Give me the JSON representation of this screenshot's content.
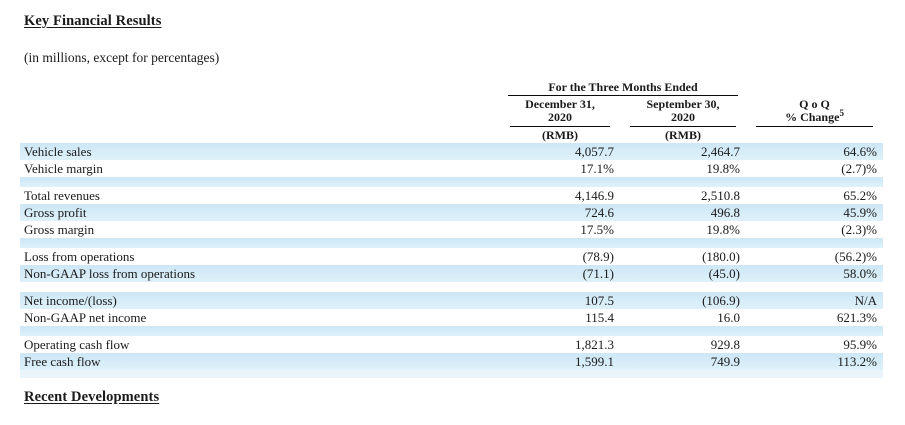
{
  "page": {
    "title": "Key Financial Results",
    "subtitle": "(in millions, except for percentages)",
    "footer_heading": "Recent Developments"
  },
  "colors": {
    "row_shade_top": "#cde7f6",
    "row_shade_bottom": "#def1fa",
    "row_pale": "#eaf5fb",
    "text": "#1a1a1a",
    "rule": "#0a0a0a"
  },
  "table": {
    "col_group_header": "For the Three Months Ended",
    "columns": [
      {
        "line1": "December 31,",
        "line2": "2020",
        "unit": "(RMB)"
      },
      {
        "line1": "September 30,",
        "line2": "2020",
        "unit": "(RMB)"
      },
      {
        "line1": "Q o Q",
        "line2": "% Change",
        "sup": "5"
      }
    ],
    "rows": [
      {
        "label": "Vehicle sales",
        "dec": "4,057.7",
        "sep": "2,464.7",
        "qoq": "64.6%",
        "shaded": true
      },
      {
        "label": "Vehicle margin",
        "dec": "17.1%",
        "sep": "19.8%",
        "qoq": "(2.7)%",
        "shaded": false
      },
      {
        "type": "spacer",
        "shade": "blue"
      },
      {
        "label": "Total revenues",
        "dec": "4,146.9",
        "sep": "2,510.8",
        "qoq": "65.2%",
        "shaded": false
      },
      {
        "label": "Gross profit",
        "dec": "724.6",
        "sep": "496.8",
        "qoq": "45.9%",
        "shaded": true
      },
      {
        "label": "Gross margin",
        "dec": "17.5%",
        "sep": "19.8%",
        "qoq": "(2.3)%",
        "shaded": false
      },
      {
        "type": "spacer",
        "shade": "blue"
      },
      {
        "label": "Loss from operations",
        "dec": "(78.9)",
        "sep": "(180.0)",
        "qoq": "(56.2)%",
        "shaded": false
      },
      {
        "label": "Non-GAAP loss from operations",
        "dec": "(71.1)",
        "sep": "(45.0)",
        "qoq": "58.0%",
        "shaded": true
      },
      {
        "type": "spacer",
        "shade": "white"
      },
      {
        "label": "Net income/(loss)",
        "dec": "107.5",
        "sep": "(106.9)",
        "qoq": "N/A",
        "shaded": true
      },
      {
        "label": "Non-GAAP net income",
        "dec": "115.4",
        "sep": "16.0",
        "qoq": "621.3%",
        "shaded": false
      },
      {
        "type": "spacer",
        "shade": "blue"
      },
      {
        "label": "Operating cash flow",
        "dec": "1,821.3",
        "sep": "929.8",
        "qoq": "95.9%",
        "shaded": false
      },
      {
        "label": "Free cash flow",
        "dec": "1,599.1",
        "sep": "749.9",
        "qoq": "113.2%",
        "shaded": true
      },
      {
        "type": "spacer",
        "shade": "pale"
      }
    ]
  }
}
